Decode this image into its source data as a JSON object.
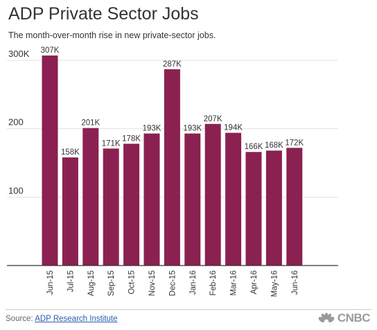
{
  "header": {
    "title": "ADP Private Sector Jobs",
    "subtitle": "The month-over-month rise in new private-sector jobs."
  },
  "footer": {
    "source_prefix": "Source: ",
    "source_link": "ADP Research Institute",
    "logo_text": "CNBC"
  },
  "colors": {
    "bar": "#8b2150",
    "grid": "#e3e3e3",
    "axis": "#333333"
  },
  "chart_data": {
    "type": "bar",
    "title": "ADP Private Sector Jobs",
    "subtitle": "The month-over-month rise in new private-sector jobs.",
    "xlabel": "",
    "ylabel": "",
    "categories": [
      "Jun-15",
      "Jul-15",
      "Aug-15",
      "Sep-15",
      "Oct-15",
      "Nov-15",
      "Dec-15",
      "Jan-16",
      "Feb-16",
      "Mar-16",
      "Apr-16",
      "May-16",
      "Jun-16"
    ],
    "values": [
      307,
      158,
      201,
      171,
      178,
      193,
      287,
      193,
      207,
      194,
      166,
      168,
      172
    ],
    "data_labels": [
      "307K",
      "158K",
      "201K",
      "171K",
      "178K",
      "193K",
      "287K",
      "193K",
      "207K",
      "194K",
      "166K",
      "168K",
      "172K"
    ],
    "ylim": [
      0,
      300
    ],
    "yticks": [
      100,
      200,
      300
    ],
    "ytick_labels": [
      "100",
      "200",
      "300K"
    ],
    "grid": true
  }
}
